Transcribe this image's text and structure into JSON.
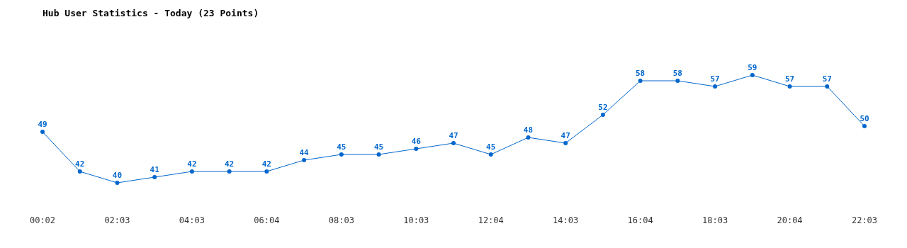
{
  "chart_data": {
    "type": "line",
    "title": "Hub User Statistics - Today (23 Points)",
    "categories": [
      "00:02",
      null,
      "02:03",
      null,
      "04:03",
      null,
      "06:04",
      null,
      "08:03",
      null,
      "10:03",
      null,
      "12:04",
      null,
      "14:03",
      null,
      "16:04",
      null,
      "18:03",
      null,
      "20:04",
      null,
      "22:03"
    ],
    "values": [
      49,
      42,
      40,
      41,
      42,
      42,
      42,
      44,
      45,
      45,
      46,
      47,
      45,
      48,
      47,
      52,
      58,
      58,
      57,
      59,
      57,
      57,
      50
    ],
    "color": "#0066cc",
    "data_labels": true,
    "marker": "circle"
  }
}
